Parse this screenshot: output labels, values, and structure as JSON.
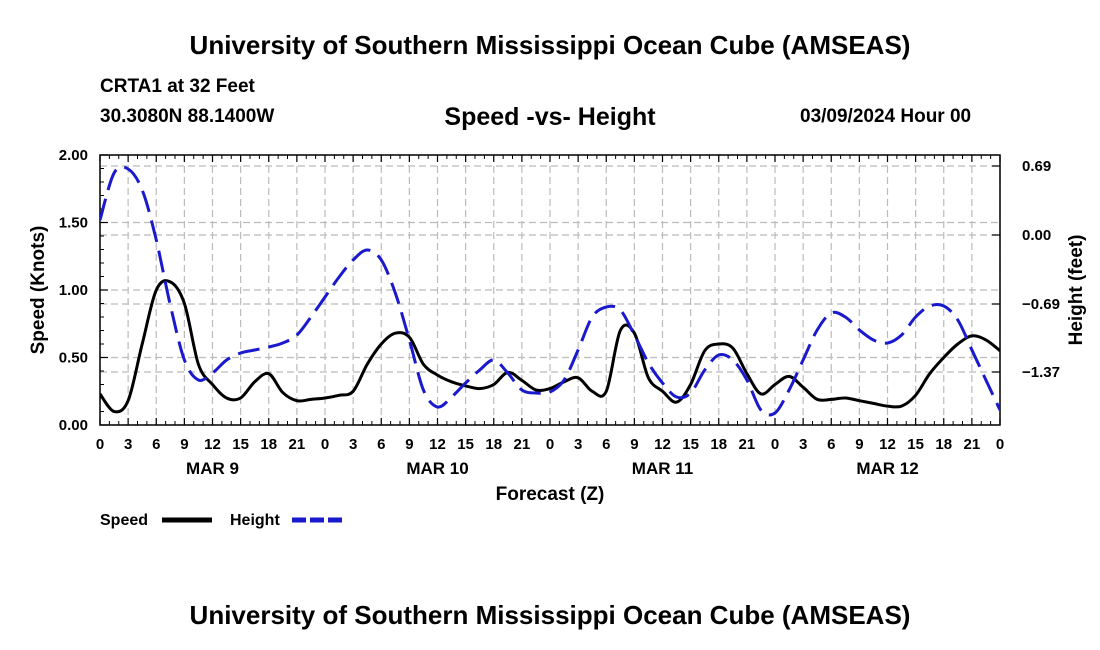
{
  "page": {
    "title_top": "University of Southern Mississippi Ocean Cube (AMSEAS)",
    "title_bottom": "University of Southern Mississippi Ocean Cube (AMSEAS)",
    "station": "CRTA1 at 32 Feet",
    "coords": "30.3080N  88.1400W",
    "date": "03/09/2024 Hour 00"
  },
  "colors": {
    "speed": "#000000",
    "height": "#1a1acc",
    "grid": "#bbbbbb"
  },
  "chart_data": {
    "type": "line",
    "title": "Speed -vs- Height",
    "xlabel": "Forecast (Z)",
    "ylabel": "Speed (Knots)",
    "ylabel_right": "Height (feet)",
    "xlim": [
      0,
      96
    ],
    "ylim": [
      0,
      2.0
    ],
    "ylim_right": [
      -1.9,
      0.8
    ],
    "x_ticks": [
      0,
      3,
      6,
      9,
      12,
      15,
      18,
      21,
      24,
      27,
      30,
      33,
      36,
      39,
      42,
      45,
      48,
      51,
      54,
      57,
      60,
      63,
      66,
      69,
      72,
      75,
      78,
      81,
      84,
      87,
      90,
      93,
      96
    ],
    "x_tick_labels": [
      "0",
      "3",
      "6",
      "9",
      "12",
      "15",
      "18",
      "21",
      "0",
      "3",
      "6",
      "9",
      "12",
      "15",
      "18",
      "21",
      "0",
      "3",
      "6",
      "9",
      "12",
      "15",
      "18",
      "21",
      "0",
      "3",
      "6",
      "9",
      "12",
      "15",
      "18",
      "21",
      "0"
    ],
    "day_labels": [
      {
        "x": 12,
        "label": "MAR 9"
      },
      {
        "x": 36,
        "label": "MAR 10"
      },
      {
        "x": 60,
        "label": "MAR 11"
      },
      {
        "x": 84,
        "label": "MAR 12"
      }
    ],
    "y_ticks": [
      0.0,
      0.5,
      1.0,
      1.5,
      2.0
    ],
    "y_tick_labels": [
      "0.00",
      "0.50",
      "1.00",
      "1.50",
      "2.00"
    ],
    "y_ticks_right": [
      0.69,
      0.0,
      -0.69,
      -1.37
    ],
    "y_tick_labels_right": [
      "0.69",
      "0.00",
      "−0.69",
      "−1.37"
    ],
    "legend": [
      {
        "label": "Speed",
        "style": "solid"
      },
      {
        "label": "Height",
        "style": "dashed"
      }
    ],
    "series": [
      {
        "name": "Speed",
        "axis": "left",
        "x": [
          0,
          1.5,
          3,
          4.5,
          6,
          7.5,
          9,
          10.5,
          12,
          13.5,
          15,
          16.5,
          18,
          19.5,
          21,
          22.5,
          24,
          25.5,
          27,
          28.5,
          30,
          31.5,
          33,
          34.5,
          36,
          37.5,
          39,
          40.5,
          42,
          43.5,
          45,
          46.5,
          48,
          49.5,
          51,
          52.5,
          54,
          55.5,
          57,
          58.5,
          60,
          61.5,
          63,
          64.5,
          66,
          67.5,
          69,
          70.5,
          72,
          73.5,
          75,
          76.5,
          78,
          79.5,
          81,
          82.5,
          84,
          85.5,
          87,
          88.5,
          90,
          91.5,
          93,
          94.5,
          96
        ],
        "values": [
          0.23,
          0.1,
          0.18,
          0.6,
          1.0,
          1.06,
          0.9,
          0.45,
          0.3,
          0.2,
          0.2,
          0.32,
          0.38,
          0.24,
          0.18,
          0.19,
          0.2,
          0.22,
          0.25,
          0.45,
          0.6,
          0.68,
          0.65,
          0.45,
          0.37,
          0.32,
          0.29,
          0.27,
          0.3,
          0.39,
          0.33,
          0.26,
          0.27,
          0.32,
          0.35,
          0.25,
          0.25,
          0.7,
          0.68,
          0.35,
          0.25,
          0.17,
          0.3,
          0.55,
          0.6,
          0.57,
          0.38,
          0.23,
          0.3,
          0.36,
          0.28,
          0.19,
          0.19,
          0.2,
          0.18,
          0.16,
          0.14,
          0.14,
          0.22,
          0.38,
          0.5,
          0.6,
          0.66,
          0.63,
          0.55
        ]
      },
      {
        "name": "Height",
        "axis": "right",
        "x": [
          0,
          1.5,
          3,
          4.5,
          6,
          7.5,
          9,
          10.5,
          12,
          13.5,
          15,
          16.5,
          18,
          19.5,
          21,
          22.5,
          24,
          25.5,
          27,
          28.5,
          30,
          31.5,
          33,
          34.5,
          36,
          37.5,
          39,
          40.5,
          42,
          43.5,
          45,
          46.5,
          48,
          49.5,
          51,
          52.5,
          54,
          55.5,
          57,
          58.5,
          60,
          61.5,
          63,
          64.5,
          66,
          67.5,
          69,
          70.5,
          72,
          73.5,
          75,
          76.5,
          78,
          79.5,
          81,
          82.5,
          84,
          85.5,
          87,
          88.5,
          90,
          91.5,
          93,
          94.5,
          96
        ],
        "values": [
          0.15,
          0.62,
          0.66,
          0.45,
          -0.05,
          -0.7,
          -1.25,
          -1.45,
          -1.38,
          -1.25,
          -1.18,
          -1.15,
          -1.12,
          -1.08,
          -1.0,
          -0.82,
          -0.62,
          -0.42,
          -0.25,
          -0.15,
          -0.25,
          -0.58,
          -1.05,
          -1.55,
          -1.72,
          -1.62,
          -1.48,
          -1.35,
          -1.25,
          -1.38,
          -1.55,
          -1.58,
          -1.57,
          -1.45,
          -1.15,
          -0.82,
          -0.72,
          -0.75,
          -1.0,
          -1.28,
          -1.48,
          -1.62,
          -1.58,
          -1.35,
          -1.2,
          -1.25,
          -1.45,
          -1.75,
          -1.78,
          -1.55,
          -1.25,
          -0.95,
          -0.78,
          -0.82,
          -0.95,
          -1.05,
          -1.08,
          -1.0,
          -0.82,
          -0.71,
          -0.71,
          -0.85,
          -1.15,
          -1.45,
          -1.75
        ]
      }
    ]
  }
}
